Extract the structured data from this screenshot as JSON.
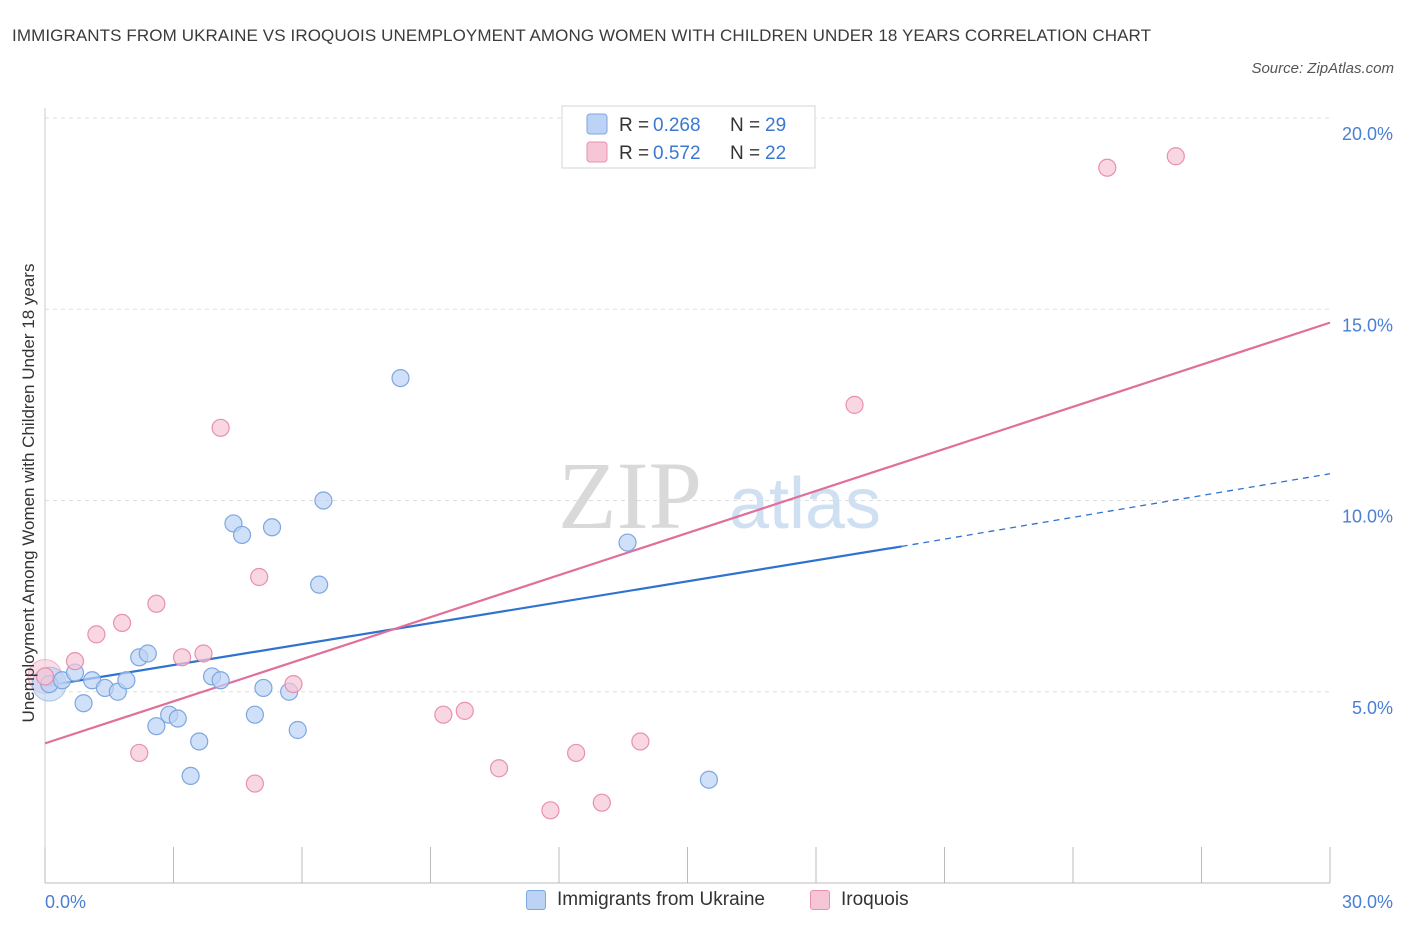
{
  "title": "IMMIGRANTS FROM UKRAINE VS IROQUOIS UNEMPLOYMENT AMONG WOMEN WITH CHILDREN UNDER 18 YEARS CORRELATION CHART",
  "source": "Source: ZipAtlas.com",
  "watermark": {
    "zip": "ZIP",
    "atlas": "atlas"
  },
  "colors": {
    "blue_fill": "#bcd3f5",
    "blue_stroke": "#7ea6e0",
    "blue_line": "#2f72d0",
    "pink_fill": "#f7c6d6",
    "pink_stroke": "#e890ae",
    "pink_line": "#e0709a",
    "axis_text": "#4a7fd4",
    "grid": "#dddddd"
  },
  "legend_top": [
    {
      "r_label": "R = ",
      "r_value": "0.268",
      "n_label": "N = ",
      "n_value": "29"
    },
    {
      "r_label": "R = ",
      "r_value": "0.572",
      "n_label": "N = ",
      "n_value": "22"
    }
  ],
  "chart_data": {
    "type": "scatter",
    "xlabel": "",
    "ylabel": "Unemployment Among Women with Children Under 18 years",
    "xlim": [
      0,
      30
    ],
    "ylim": [
      0,
      20
    ],
    "x_tick_labels": [
      "0.0%",
      "30.0%"
    ],
    "y_ticks": [
      5,
      10,
      15,
      20
    ],
    "y_tick_labels": [
      "5.0%",
      "10.0%",
      "15.0%",
      "20.0%"
    ],
    "grid": true,
    "legend_position": "top-center",
    "series": [
      {
        "name": "Immigrants from Ukraine",
        "color": "blue",
        "points": [
          [
            0.1,
            5.2
          ],
          [
            0.4,
            5.3
          ],
          [
            0.7,
            5.5
          ],
          [
            0.9,
            4.7
          ],
          [
            1.1,
            5.3
          ],
          [
            1.4,
            5.1
          ],
          [
            1.7,
            5.0
          ],
          [
            1.9,
            5.3
          ],
          [
            2.2,
            5.9
          ],
          [
            2.4,
            6.0
          ],
          [
            2.6,
            4.1
          ],
          [
            2.9,
            4.4
          ],
          [
            3.1,
            4.3
          ],
          [
            3.4,
            2.8
          ],
          [
            3.6,
            3.7
          ],
          [
            3.9,
            5.4
          ],
          [
            4.1,
            5.3
          ],
          [
            4.4,
            9.4
          ],
          [
            4.6,
            9.1
          ],
          [
            4.9,
            4.4
          ],
          [
            5.1,
            5.1
          ],
          [
            5.3,
            9.3
          ],
          [
            5.7,
            5.0
          ],
          [
            5.9,
            4.0
          ],
          [
            6.4,
            7.8
          ],
          [
            6.5,
            10.0
          ],
          [
            8.3,
            13.2
          ],
          [
            13.6,
            8.9
          ],
          [
            15.5,
            2.7
          ]
        ],
        "trend": {
          "x": [
            0,
            20
          ],
          "y": [
            5.15,
            8.8
          ]
        },
        "trend_extension": {
          "x": [
            20,
            30
          ],
          "y": [
            8.8,
            10.7
          ]
        }
      },
      {
        "name": "Iroquois",
        "color": "pink",
        "points": [
          [
            0.0,
            5.4
          ],
          [
            0.7,
            5.8
          ],
          [
            1.2,
            6.5
          ],
          [
            1.8,
            6.8
          ],
          [
            2.2,
            3.4
          ],
          [
            2.6,
            7.3
          ],
          [
            3.2,
            5.9
          ],
          [
            3.7,
            6.0
          ],
          [
            4.1,
            11.9
          ],
          [
            4.9,
            2.6
          ],
          [
            5.0,
            8.0
          ],
          [
            5.8,
            5.2
          ],
          [
            9.3,
            4.4
          ],
          [
            9.8,
            4.5
          ],
          [
            10.6,
            3.0
          ],
          [
            11.8,
            1.9
          ],
          [
            12.4,
            3.4
          ],
          [
            13.0,
            2.1
          ],
          [
            13.9,
            3.7
          ],
          [
            18.9,
            12.5
          ],
          [
            24.8,
            18.7
          ],
          [
            26.4,
            19.0
          ]
        ],
        "trend": {
          "x": [
            0,
            30
          ],
          "y": [
            3.65,
            14.65
          ]
        }
      }
    ]
  },
  "legend_bottom": [
    {
      "label": "Immigrants from Ukraine",
      "color": "blue"
    },
    {
      "label": "Iroquois",
      "color": "pink"
    }
  ]
}
